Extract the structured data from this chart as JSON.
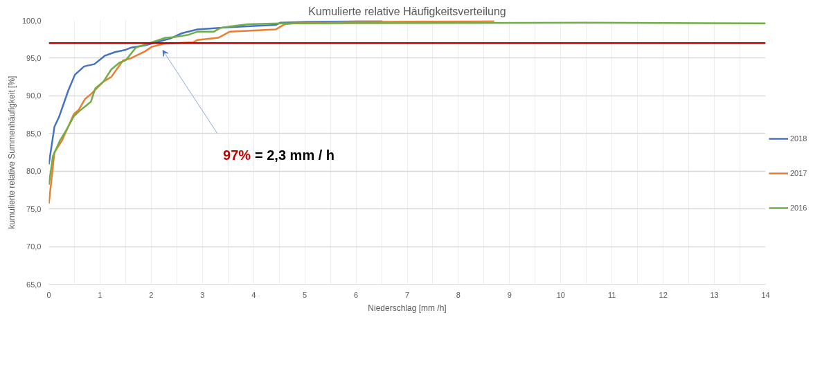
{
  "chart_data": {
    "type": "line",
    "title": "Kumulierte relative Häufigkeitsverteilung",
    "xlabel": "Niederschlag [mm /h]",
    "ylabel": "kumulierte relative Summenhäufigkeit [%]",
    "xlim": [
      0,
      14
    ],
    "ylim": [
      65,
      100
    ],
    "xticks": [
      0,
      {
        "value": 0.5,
        "label": null
      },
      1,
      {
        "value": 1.5,
        "label": null
      },
      2,
      {
        "value": 2.5,
        "label": null
      },
      3,
      {
        "value": 3.5,
        "label": null
      },
      4,
      {
        "value": 4.5,
        "label": null
      },
      5,
      {
        "value": 5.5,
        "label": null
      },
      6,
      {
        "value": 6.5,
        "label": null
      },
      7,
      {
        "value": 7.5,
        "label": null
      },
      8,
      {
        "value": 8.5,
        "label": null
      },
      9,
      {
        "value": 9.5,
        "label": null
      },
      10,
      {
        "value": 10.5,
        "label": null
      },
      11,
      {
        "value": 11.5,
        "label": null
      },
      12,
      {
        "value": 12.5,
        "label": null
      },
      13,
      {
        "value": 13.5,
        "label": null
      },
      14
    ],
    "yticks": [
      {
        "value": 65,
        "label": "65,0"
      },
      {
        "value": 70,
        "label": "70,0"
      },
      {
        "value": 75,
        "label": "75,0"
      },
      {
        "value": 80,
        "label": "80,0"
      },
      {
        "value": 85,
        "label": "85,0"
      },
      {
        "value": 90,
        "label": "90,0"
      },
      {
        "value": 95,
        "label": "95,0"
      },
      {
        "value": 100,
        "label": "100,0"
      }
    ],
    "grid": true,
    "legend": "right",
    "line_style": "solid",
    "marker": "none",
    "series": [
      {
        "name": "2018",
        "color": "#4472c4",
        "x": [
          0,
          0.11,
          0.2,
          0.38,
          0.51,
          0.69,
          0.89,
          1.09,
          1.29,
          1.5,
          1.61,
          1.88,
          2.1,
          2.37,
          2.6,
          2.9,
          3.53,
          4.43,
          4.52,
          5,
          6,
          6.52
        ],
        "values": [
          80.9,
          85.9,
          87.2,
          90.7,
          92.8,
          93.9,
          94.2,
          95.3,
          95.8,
          96.1,
          96.4,
          96.7,
          97.1,
          97.6,
          98.3,
          98.8,
          99.1,
          99.4,
          99.7,
          99.8,
          99.9,
          99.9
        ]
      },
      {
        "name": "2017",
        "color": "#ed7d31",
        "x": [
          0,
          0.11,
          0.26,
          0.49,
          0.58,
          0.71,
          0.82,
          1.07,
          1.22,
          1.45,
          1.61,
          1.88,
          2.01,
          2.24,
          2.82,
          2.9,
          3.31,
          3.53,
          4.43,
          4.61,
          4.79,
          6,
          8.7
        ],
        "values": [
          75.7,
          82.5,
          84.1,
          87.6,
          88.1,
          89.6,
          90.2,
          91.9,
          92.5,
          94.7,
          95.0,
          95.9,
          96.5,
          96.9,
          97.1,
          97.4,
          97.7,
          98.5,
          98.8,
          99.5,
          99.6,
          99.8,
          99.9
        ]
      },
      {
        "name": "2016",
        "color": "#70ad47",
        "x": [
          0,
          0.08,
          0.22,
          0.33,
          0.49,
          0.6,
          0.73,
          0.82,
          0.91,
          1.07,
          1.22,
          1.38,
          1.5,
          1.7,
          1.97,
          2.28,
          2.46,
          2.73,
          2.9,
          3.22,
          3.35,
          3.53,
          3.89,
          4.52,
          10.5,
          14
        ],
        "values": [
          78.2,
          82.0,
          84.1,
          85.3,
          87.3,
          88.0,
          88.7,
          89.2,
          91.0,
          91.9,
          93.5,
          94.4,
          94.7,
          96.4,
          97.0,
          97.7,
          97.8,
          98.1,
          98.5,
          98.5,
          99.0,
          99.2,
          99.5,
          99.6,
          99.7,
          99.6
        ]
      }
    ],
    "ref_lines": [
      {
        "axis": "y",
        "value": 97,
        "color": "#c00000"
      }
    ],
    "annotations": [
      "97% = 2,3 mm / h"
    ]
  }
}
